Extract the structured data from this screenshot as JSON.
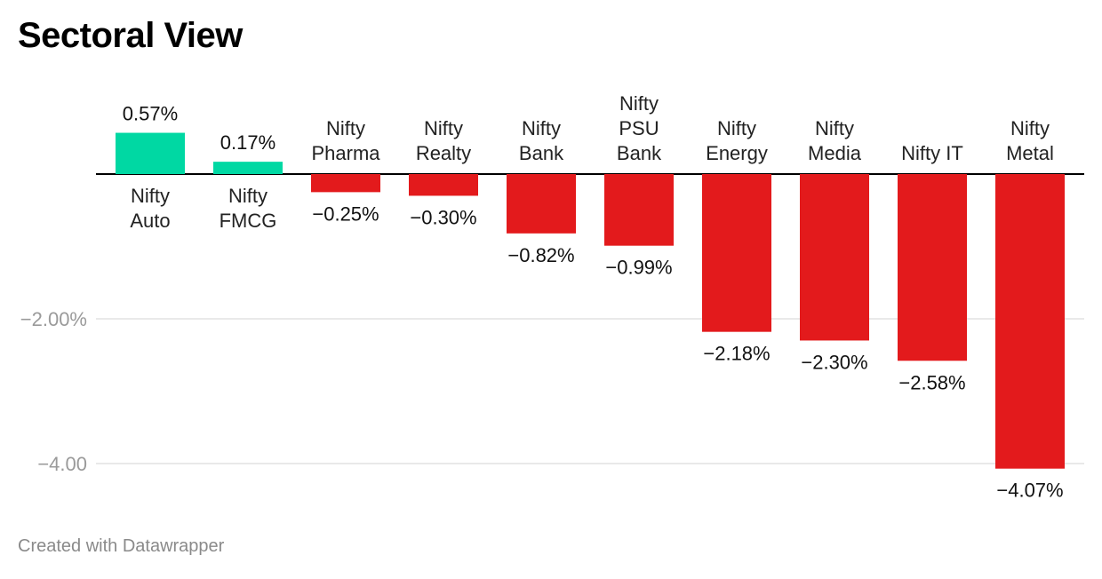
{
  "title": "Sectoral View",
  "footer": "Created with Datawrapper",
  "chart_data": {
    "type": "bar",
    "title": "Sectoral View",
    "xlabel": "",
    "ylabel": "",
    "ylim": [
      -4.25,
      0.7
    ],
    "yticks": [
      {
        "value": -2,
        "label": "−2.00%"
      },
      {
        "value": -4,
        "label": "−4.00"
      }
    ],
    "grid": true,
    "legend": "none",
    "colors": {
      "positive": "#00d8a3",
      "negative": "#e31a1c",
      "axis": "#000000",
      "grid": "#e2e2e2"
    },
    "categories": [
      [
        "Nifty",
        "Auto"
      ],
      [
        "Nifty",
        "FMCG"
      ],
      [
        "Nifty",
        "Pharma"
      ],
      [
        "Nifty",
        "Realty"
      ],
      [
        "Nifty",
        "Bank"
      ],
      [
        "Nifty",
        "PSU",
        "Bank"
      ],
      [
        "Nifty",
        "Energy"
      ],
      [
        "Nifty",
        "Media"
      ],
      [
        "Nifty IT"
      ],
      [
        "Nifty",
        "Metal"
      ]
    ],
    "values": [
      0.57,
      0.17,
      -0.25,
      -0.3,
      -0.82,
      -0.99,
      -2.18,
      -2.3,
      -2.58,
      -4.07
    ],
    "value_labels": [
      "0.57%",
      "0.17%",
      "−0.25%",
      "−0.30%",
      "−0.82%",
      "−0.99%",
      "−2.18%",
      "−2.30%",
      "−2.58%",
      "−4.07%"
    ]
  }
}
